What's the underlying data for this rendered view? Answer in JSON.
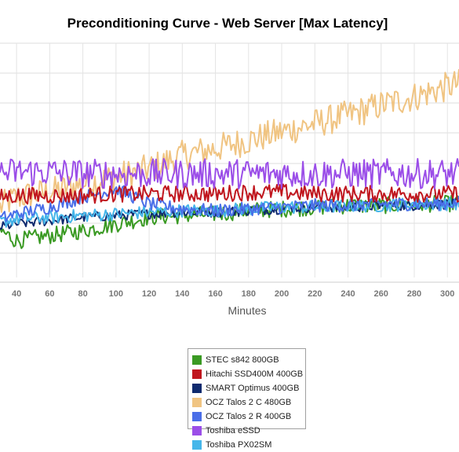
{
  "chart_data": {
    "type": "line",
    "title": "Preconditioning Curve - Web Server [Max Latency]",
    "xlabel": "Minutes",
    "ylabel": "",
    "x_ticks": [
      40,
      60,
      80,
      100,
      120,
      140,
      160,
      180,
      200,
      220,
      240,
      260,
      280,
      300
    ],
    "xlim": [
      30,
      307
    ],
    "grid": true,
    "legend_position": "bottom",
    "series": [
      {
        "name": "STEC s842 800GB",
        "color": "#3a9a23",
        "values": [
          [
            30,
            48
          ],
          [
            40,
            42
          ],
          [
            60,
            45
          ],
          [
            80,
            48
          ],
          [
            100,
            52
          ],
          [
            120,
            56
          ],
          [
            140,
            57
          ],
          [
            160,
            58
          ],
          [
            180,
            60
          ],
          [
            200,
            61
          ],
          [
            220,
            62
          ],
          [
            240,
            63
          ],
          [
            260,
            63
          ],
          [
            280,
            64
          ],
          [
            300,
            64
          ],
          [
            307,
            65
          ]
        ]
      },
      {
        "name": "Hitachi SSD400M 400GB",
        "color": "#c0161e",
        "values": [
          [
            30,
            68
          ],
          [
            40,
            69
          ],
          [
            60,
            69
          ],
          [
            80,
            69
          ],
          [
            100,
            70
          ],
          [
            120,
            70
          ],
          [
            140,
            70
          ],
          [
            160,
            70
          ],
          [
            180,
            71
          ],
          [
            200,
            71
          ],
          [
            220,
            70
          ],
          [
            240,
            70
          ],
          [
            260,
            70
          ],
          [
            280,
            70
          ],
          [
            300,
            70
          ],
          [
            307,
            70
          ]
        ]
      },
      {
        "name": "SMART Optimus 400GB",
        "color": "#0f2a6e",
        "values": [
          [
            30,
            50
          ],
          [
            40,
            52
          ],
          [
            60,
            54
          ],
          [
            80,
            56
          ],
          [
            100,
            57
          ],
          [
            120,
            58
          ],
          [
            140,
            59
          ],
          [
            160,
            59
          ],
          [
            180,
            60
          ],
          [
            200,
            61
          ],
          [
            220,
            62
          ],
          [
            240,
            62
          ],
          [
            260,
            63
          ],
          [
            280,
            63
          ],
          [
            300,
            64
          ],
          [
            307,
            64
          ]
        ]
      },
      {
        "name": "OCZ Talos 2 C 480GB",
        "color": "#f0c482",
        "values": [
          [
            30,
            62
          ],
          [
            40,
            68
          ],
          [
            60,
            71
          ],
          [
            80,
            76
          ],
          [
            100,
            80
          ],
          [
            120,
            85
          ],
          [
            140,
            93
          ],
          [
            160,
            97
          ],
          [
            180,
            102
          ],
          [
            200,
            107
          ],
          [
            220,
            112
          ],
          [
            240,
            117
          ],
          [
            260,
            123
          ],
          [
            280,
            128
          ],
          [
            300,
            134
          ],
          [
            307,
            136
          ]
        ]
      },
      {
        "name": "OCZ Talos 2 R 400GB",
        "color": "#4a6ee8",
        "values": [
          [
            30,
            55
          ],
          [
            40,
            58
          ],
          [
            60,
            62
          ],
          [
            80,
            68
          ],
          [
            100,
            73
          ],
          [
            120,
            64
          ],
          [
            140,
            61
          ],
          [
            160,
            60
          ],
          [
            180,
            61
          ],
          [
            200,
            62
          ],
          [
            220,
            63
          ],
          [
            240,
            63
          ],
          [
            260,
            64
          ],
          [
            280,
            64
          ],
          [
            300,
            64
          ],
          [
            307,
            65
          ]
        ]
      },
      {
        "name": "Toshiba eSSD",
        "color": "#9b4ee8",
        "values": [
          [
            30,
            82
          ],
          [
            40,
            83
          ],
          [
            60,
            83
          ],
          [
            80,
            82
          ],
          [
            100,
            82
          ],
          [
            120,
            82
          ],
          [
            140,
            82
          ],
          [
            160,
            82
          ],
          [
            180,
            82
          ],
          [
            200,
            82
          ],
          [
            220,
            82
          ],
          [
            240,
            82
          ],
          [
            260,
            82
          ],
          [
            280,
            82
          ],
          [
            300,
            82
          ],
          [
            307,
            82
          ]
        ]
      },
      {
        "name": "Toshiba PX02SM",
        "color": "#45b6ea",
        "values": [
          [
            30,
            53
          ],
          [
            40,
            55
          ],
          [
            60,
            56
          ],
          [
            80,
            57
          ],
          [
            100,
            58
          ],
          [
            120,
            59
          ],
          [
            140,
            60
          ],
          [
            160,
            60
          ],
          [
            180,
            61
          ],
          [
            200,
            62
          ],
          [
            220,
            62
          ],
          [
            240,
            63
          ],
          [
            260,
            63
          ],
          [
            280,
            64
          ],
          [
            300,
            64
          ],
          [
            307,
            64
          ]
        ]
      }
    ]
  }
}
